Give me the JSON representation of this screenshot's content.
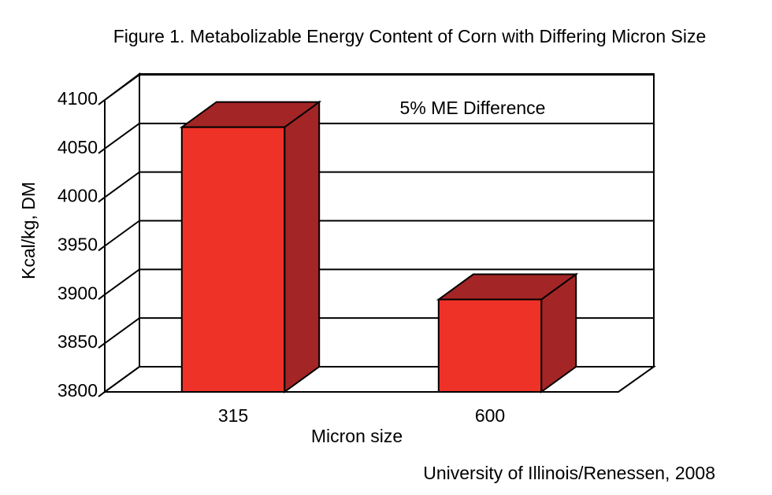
{
  "chart_data": {
    "type": "bar3d",
    "title": "Figure 1. Metabolizable Energy Content of Corn with Differing Micron Size",
    "x_label": "Micron size",
    "y_label": "Kcal/kg, DM",
    "annotation": "5% ME Difference",
    "source": "University of Illinois/Renessen, 2008",
    "categories": [
      "315",
      "600"
    ],
    "values": [
      4072,
      3895
    ],
    "color": "#ee3228",
    "side_color": "#a32525",
    "ylim": [
      3800,
      4100
    ],
    "yticks": [
      3800,
      3850,
      3900,
      3950,
      4000,
      4050,
      4100
    ],
    "grid": true
  }
}
